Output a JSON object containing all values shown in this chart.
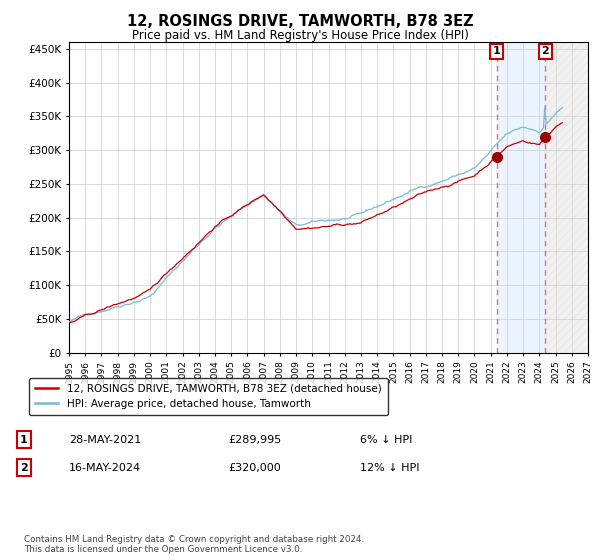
{
  "title": "12, ROSINGS DRIVE, TAMWORTH, B78 3EZ",
  "subtitle": "Price paid vs. HM Land Registry's House Price Index (HPI)",
  "ylim": [
    0,
    460000
  ],
  "yticks": [
    0,
    50000,
    100000,
    150000,
    200000,
    250000,
    300000,
    350000,
    400000,
    450000
  ],
  "ytick_labels": [
    "£0",
    "£50K",
    "£100K",
    "£150K",
    "£200K",
    "£250K",
    "£300K",
    "£350K",
    "£400K",
    "£450K"
  ],
  "hpi_color": "#7ab8d9",
  "price_color": "#cc0000",
  "marker_color": "#990000",
  "bg_color": "#ffffff",
  "grid_color": "#cccccc",
  "shade_color": "#ddeeff",
  "vline_color": "#dd6666",
  "purchase1_price": 289995,
  "purchase1_hpi": 308500,
  "purchase1_year": 2021.37,
  "purchase2_price": 320000,
  "purchase2_hpi": 363636,
  "purchase2_year": 2024.37,
  "purchase1_date": "28-MAY-2021",
  "purchase2_date": "16-MAY-2024",
  "purchase1_hpi_pct": "6% ↓ HPI",
  "purchase2_hpi_pct": "12% ↓ HPI",
  "legend_line1": "12, ROSINGS DRIVE, TAMWORTH, B78 3EZ (detached house)",
  "legend_line2": "HPI: Average price, detached house, Tamworth",
  "footer": "Contains HM Land Registry data © Crown copyright and database right 2024.\nThis data is licensed under the Open Government Licence v3.0.",
  "x_start_year": 1995.0,
  "x_end_year": 2027.0
}
